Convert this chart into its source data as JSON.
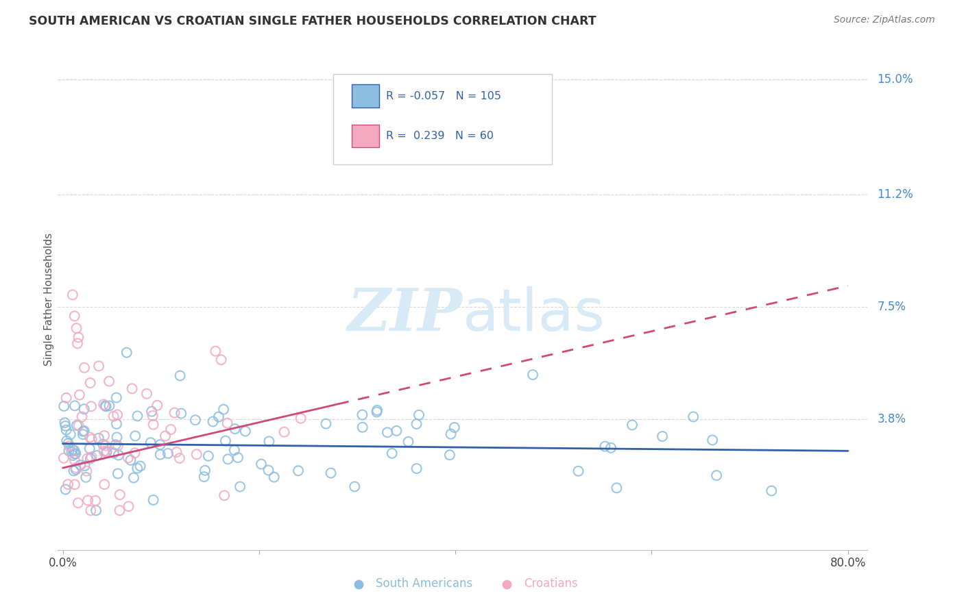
{
  "title": "SOUTH AMERICAN VS CROATIAN SINGLE FATHER HOUSEHOLDS CORRELATION CHART",
  "source": "Source: ZipAtlas.com",
  "ylabel": "Single Father Households",
  "x_min": 0.0,
  "x_max": 0.8,
  "y_min": -0.005,
  "y_max": 0.16,
  "y_tick_labels_right": [
    "15.0%",
    "11.2%",
    "7.5%",
    "3.8%"
  ],
  "y_tick_vals_right": [
    0.15,
    0.112,
    0.075,
    0.038
  ],
  "blue_R": "-0.057",
  "blue_N": "105",
  "pink_R": "0.239",
  "pink_N": "60",
  "blue_color": "#8bbde0",
  "pink_color": "#f4a8c0",
  "blue_line_color": "#3060a8",
  "pink_line_color": "#d04878",
  "watermark_color": "#d8eaf5",
  "background_color": "#ffffff",
  "grid_color": "#d8d8d8",
  "legend_box_color": "#e8e8e8",
  "right_label_color": "#4488cc",
  "title_color": "#333333",
  "source_color": "#777777",
  "bottom_legend_blue": "#88bbdd",
  "bottom_legend_pink": "#f4a8c0"
}
